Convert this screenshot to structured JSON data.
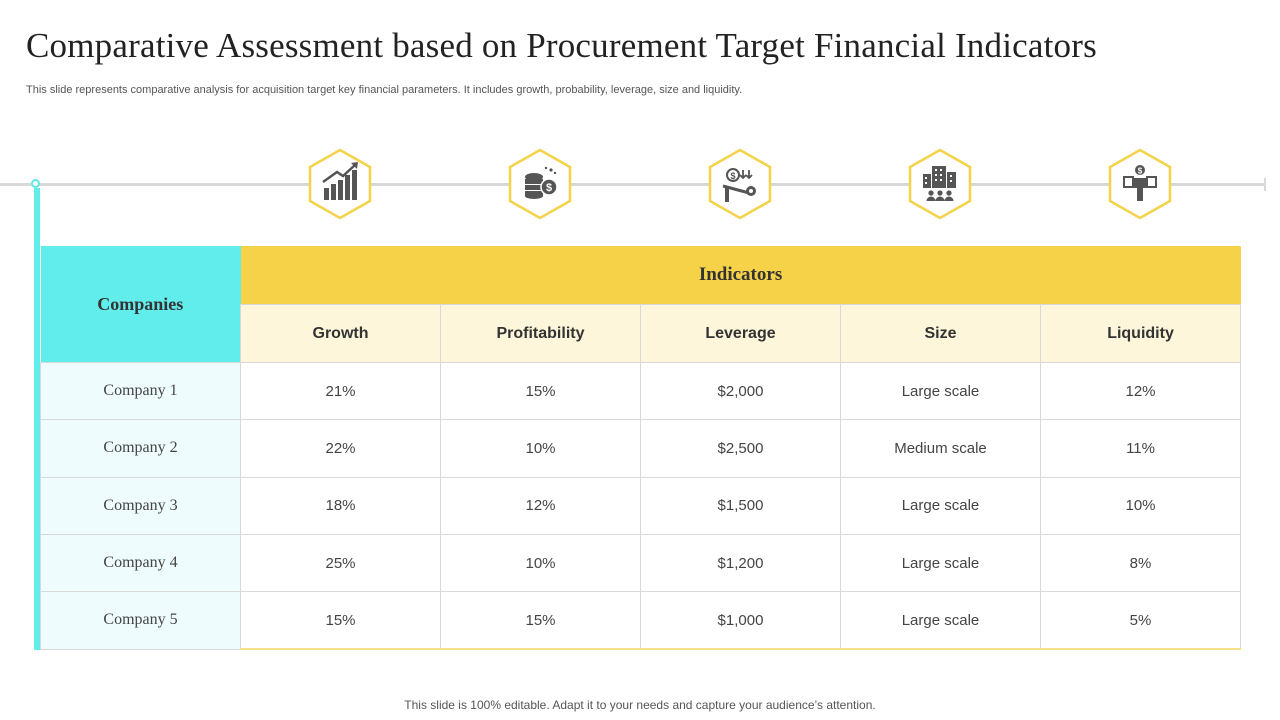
{
  "slide": {
    "title": "Comparative Assessment based on Procurement Target Financial Indicators",
    "subtitle": "This slide represents comparative analysis for acquisition target key financial parameters. It includes growth, probability, leverage, size and liquidity.",
    "footer": "This slide is 100% editable. Adapt it to your needs and capture your audience’s attention."
  },
  "colors": {
    "accent_cyan": "#62eded",
    "accent_yellow": "#f5d247",
    "header_light": "#fdf6da",
    "company_bg": "#eefcfd",
    "icon_dark": "#555555"
  },
  "icons": [
    "growth-chart-icon",
    "coin-stack-icon",
    "leverage-seesaw-icon",
    "office-building-icon",
    "liquidity-hand-cash-icon"
  ],
  "table": {
    "companies_header": "Companies",
    "indicators_header": "Indicators",
    "columns": [
      "Growth",
      "Profitability",
      "Leverage",
      "Size",
      "Liquidity"
    ],
    "rows": [
      {
        "company": "Company 1",
        "values": [
          "21%",
          "15%",
          "$2,000",
          "Large scale",
          "12%"
        ]
      },
      {
        "company": "Company 2",
        "values": [
          "22%",
          "10%",
          "$2,500",
          "Medium scale",
          "11%"
        ]
      },
      {
        "company": "Company 3",
        "values": [
          "18%",
          "12%",
          "$1,500",
          "Large scale",
          "10%"
        ]
      },
      {
        "company": "Company 4",
        "values": [
          "25%",
          "10%",
          "$1,200",
          "Large scale",
          "8%"
        ]
      },
      {
        "company": "Company 5",
        "values": [
          "15%",
          "15%",
          "$1,000",
          "Large scale",
          "5%"
        ]
      }
    ]
  }
}
